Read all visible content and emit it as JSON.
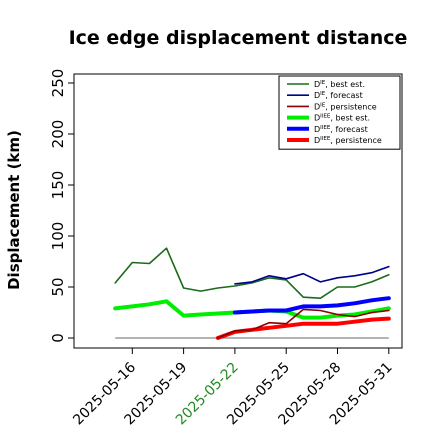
{
  "chart_data": {
    "type": "line",
    "title": "Ice edge displacement distance",
    "xlabel": "",
    "ylabel": "Displacement (km)",
    "ylim": [
      0,
      260
    ],
    "yticks": [
      0,
      50,
      100,
      150,
      200,
      250
    ],
    "ytick_labels": [
      "0",
      "50",
      "100",
      "150",
      "200",
      "250"
    ],
    "xlim": [
      "2025-05-13",
      "2025-06-01"
    ],
    "xticks": [
      {
        "date": "2025-05-16",
        "label": "2025-05-16",
        "color": "#000000"
      },
      {
        "date": "2025-05-19",
        "label": "2025-05-19",
        "color": "#000000"
      },
      {
        "date": "2025-05-22",
        "label": "2025-05-22",
        "color": "#228b22"
      },
      {
        "date": "2025-05-25",
        "label": "2025-05-25",
        "color": "#000000"
      },
      {
        "date": "2025-05-28",
        "label": "2025-05-28",
        "color": "#000000"
      },
      {
        "date": "2025-05-31",
        "label": "2025-05-31",
        "color": "#000000"
      }
    ],
    "grid": false,
    "legend_position": "top-right",
    "series": [
      {
        "name": "D^IE, best est.",
        "legend_main": "D",
        "legend_sup": "IE",
        "legend_rest": ", best est.",
        "color": "#1a6b1a",
        "style": "thin",
        "points": [
          [
            "2025-05-15",
            54
          ],
          [
            "2025-05-16",
            74
          ],
          [
            "2025-05-17",
            73
          ],
          [
            "2025-05-18",
            88
          ],
          [
            "2025-05-19",
            49
          ],
          [
            "2025-05-20",
            46
          ],
          [
            "2025-05-21",
            49
          ],
          [
            "2025-05-22",
            51
          ],
          [
            "2025-05-23",
            54
          ],
          [
            "2025-05-24",
            59
          ],
          [
            "2025-05-25",
            57
          ],
          [
            "2025-05-26",
            40
          ],
          [
            "2025-05-27",
            39
          ],
          [
            "2025-05-28",
            50
          ],
          [
            "2025-05-29",
            50
          ],
          [
            "2025-05-30",
            55
          ],
          [
            "2025-05-31",
            62
          ]
        ]
      },
      {
        "name": "D^IE, forecast",
        "legend_main": "D",
        "legend_sup": "IE",
        "legend_rest": ", forecast",
        "color": "#00008b",
        "style": "thin",
        "points": [
          [
            "2025-05-22",
            53
          ],
          [
            "2025-05-23",
            55
          ],
          [
            "2025-05-24",
            61
          ],
          [
            "2025-05-25",
            58
          ],
          [
            "2025-05-26",
            63
          ],
          [
            "2025-05-27",
            55
          ],
          [
            "2025-05-28",
            59
          ],
          [
            "2025-05-29",
            61
          ],
          [
            "2025-05-30",
            64
          ],
          [
            "2025-05-31",
            70
          ]
        ]
      },
      {
        "name": "D^IE, persistence",
        "legend_main": "D",
        "legend_sup": "IE",
        "legend_rest": ", persistence",
        "color": "#8b0000",
        "style": "thin",
        "points": [
          [
            "2025-05-21",
            0
          ],
          [
            "2025-05-22",
            7
          ],
          [
            "2025-05-23",
            8
          ],
          [
            "2025-05-24",
            15
          ],
          [
            "2025-05-25",
            14
          ],
          [
            "2025-05-26",
            28
          ],
          [
            "2025-05-27",
            27
          ],
          [
            "2025-05-28",
            23
          ],
          [
            "2025-05-29",
            21
          ],
          [
            "2025-05-30",
            25
          ],
          [
            "2025-05-31",
            27
          ]
        ]
      },
      {
        "name": "D^IIEE, best est.",
        "legend_main": "D",
        "legend_sup": "IIEE",
        "legend_rest": ", best est.",
        "color": "#00ee00",
        "style": "thick",
        "points": [
          [
            "2025-05-15",
            29
          ],
          [
            "2025-05-16",
            31
          ],
          [
            "2025-05-17",
            33
          ],
          [
            "2025-05-18",
            36
          ],
          [
            "2025-05-19",
            22
          ],
          [
            "2025-05-20",
            23
          ],
          [
            "2025-05-21",
            24
          ],
          [
            "2025-05-22",
            25
          ],
          [
            "2025-05-23",
            26
          ],
          [
            "2025-05-24",
            27
          ],
          [
            "2025-05-25",
            26
          ],
          [
            "2025-05-26",
            20
          ],
          [
            "2025-05-27",
            20
          ],
          [
            "2025-05-28",
            22
          ],
          [
            "2025-05-29",
            23
          ],
          [
            "2025-05-30",
            26
          ],
          [
            "2025-05-31",
            29
          ]
        ]
      },
      {
        "name": "D^IIEE, forecast",
        "legend_main": "D",
        "legend_sup": "IIEE",
        "legend_rest": ", forecast",
        "color": "#0000ff",
        "style": "thick",
        "points": [
          [
            "2025-05-22",
            25
          ],
          [
            "2025-05-23",
            26
          ],
          [
            "2025-05-24",
            27
          ],
          [
            "2025-05-25",
            27
          ],
          [
            "2025-05-26",
            31
          ],
          [
            "2025-05-27",
            31
          ],
          [
            "2025-05-28",
            32
          ],
          [
            "2025-05-29",
            34
          ],
          [
            "2025-05-30",
            37
          ],
          [
            "2025-05-31",
            39
          ]
        ]
      },
      {
        "name": "D^IIEE, persistence",
        "legend_main": "D",
        "legend_sup": "IIEE",
        "legend_rest": ", persistence",
        "color": "#ff0000",
        "style": "thick",
        "points": [
          [
            "2025-05-21",
            0
          ],
          [
            "2025-05-22",
            6
          ],
          [
            "2025-05-23",
            8
          ],
          [
            "2025-05-24",
            10
          ],
          [
            "2025-05-25",
            12
          ],
          [
            "2025-05-26",
            14
          ],
          [
            "2025-05-27",
            14
          ],
          [
            "2025-05-28",
            14
          ],
          [
            "2025-05-29",
            16
          ],
          [
            "2025-05-30",
            18
          ],
          [
            "2025-05-31",
            19
          ]
        ]
      }
    ],
    "reference_line": {
      "value": 0,
      "from": "2025-05-15",
      "to": "2025-05-31",
      "color": "#888888"
    }
  }
}
